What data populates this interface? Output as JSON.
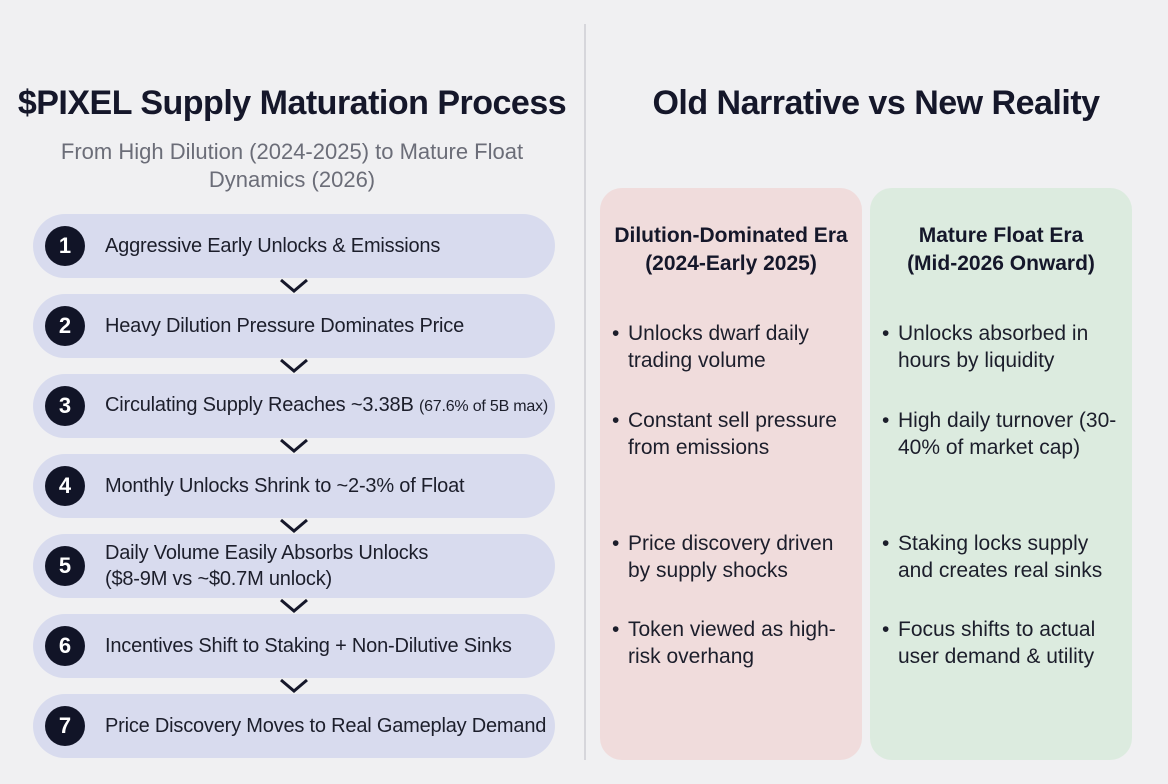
{
  "left": {
    "title": "$PIXEL Supply Maturation Process",
    "subtitle": "From High Dilution (2024-2025) to Mature Float Dynamics (2026)",
    "steps": [
      {
        "num": "1",
        "text": "Aggressive Early Unlocks & Emissions"
      },
      {
        "num": "2",
        "text": "Heavy Dilution Pressure Dominates Price"
      },
      {
        "num": "3",
        "text": "Circulating Supply Reaches ~3.38B",
        "note": "(67.6% of 5B max)"
      },
      {
        "num": "4",
        "text": "Monthly Unlocks Shrink to ~2-3% of Float"
      },
      {
        "num": "5",
        "text": "Daily Volume Easily Absorbs Unlocks",
        "text2": "($8-9M vs ~$0.7M unlock)"
      },
      {
        "num": "6",
        "text": "Incentives Shift to Staking + Non-Dilutive Sinks"
      },
      {
        "num": "7",
        "text": "Price Discovery Moves to Real Gameplay Demand"
      }
    ]
  },
  "right": {
    "title": "Old Narrative vs New Reality",
    "old": {
      "title_line1": "Dilution-Dominated Era",
      "title_line2": "(2024-Early 2025)",
      "bullets": [
        "Unlocks dwarf daily trading volume",
        "Constant sell pressure from emissions",
        "Price discovery driven by supply shocks",
        "Token viewed as high-risk overhang"
      ]
    },
    "new": {
      "title_line1": "Mature Float Era",
      "title_line2": "(Mid-2026 Onward)",
      "bullets": [
        "Unlocks absorbed in hours by liquidity",
        "High daily turnover (30-40% of market cap)",
        "Staking locks supply and creates real sinks",
        "Focus shifts to actual user demand & utility"
      ]
    }
  },
  "bullet_symbol": "•"
}
